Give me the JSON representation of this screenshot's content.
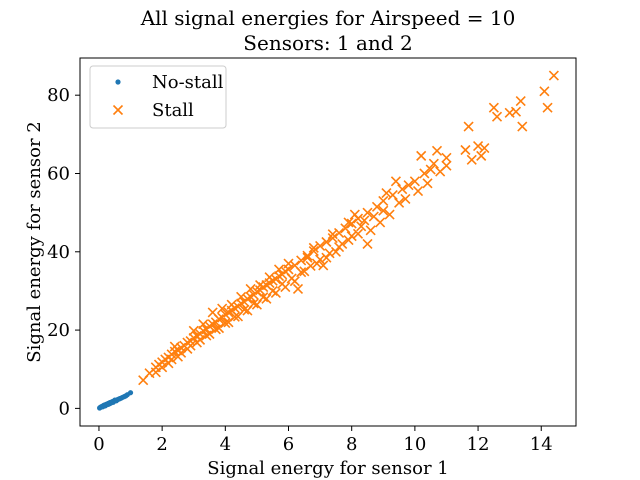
{
  "chart_data": {
    "type": "scatter",
    "title": "All signal energies for Airspeed = 10",
    "subtitle": "Sensors: 1 and 2",
    "xlabel": "Signal energy for sensor 1",
    "ylabel": "Signal energy for sensor 2",
    "xlim": [
      -0.6,
      15.1
    ],
    "ylim": [
      -4.5,
      89.5
    ],
    "xticks": [
      0,
      2,
      4,
      6,
      8,
      10,
      12,
      14
    ],
    "yticks": [
      0,
      20,
      40,
      60,
      80
    ],
    "grid": false,
    "legend_position": "top-left",
    "series": [
      {
        "name": "No-stall",
        "marker": "dot",
        "color": "#1f77b4",
        "points": [
          [
            0.02,
            0.1
          ],
          [
            0.04,
            0.25
          ],
          [
            0.06,
            0.3
          ],
          [
            0.08,
            0.45
          ],
          [
            0.1,
            0.5
          ],
          [
            0.12,
            0.55
          ],
          [
            0.14,
            0.7
          ],
          [
            0.16,
            0.8
          ],
          [
            0.18,
            0.85
          ],
          [
            0.2,
            0.9
          ],
          [
            0.22,
            1.0
          ],
          [
            0.25,
            1.1
          ],
          [
            0.28,
            1.2
          ],
          [
            0.3,
            1.3
          ],
          [
            0.33,
            1.4
          ],
          [
            0.36,
            1.5
          ],
          [
            0.4,
            1.6
          ],
          [
            0.43,
            1.75
          ],
          [
            0.46,
            1.8
          ],
          [
            0.5,
            1.9
          ],
          [
            0.54,
            2.0
          ],
          [
            0.58,
            2.2
          ],
          [
            0.62,
            2.35
          ],
          [
            0.66,
            2.5
          ],
          [
            0.7,
            2.6
          ],
          [
            0.74,
            2.8
          ],
          [
            0.8,
            3.0
          ],
          [
            0.85,
            3.2
          ],
          [
            0.9,
            3.5
          ],
          [
            1.0,
            4.0
          ],
          [
            0.12,
            0.4
          ],
          [
            0.2,
            0.65
          ],
          [
            0.26,
            0.95
          ],
          [
            0.35,
            1.25
          ],
          [
            0.45,
            1.55
          ],
          [
            0.55,
            1.95
          ],
          [
            0.65,
            2.45
          ],
          [
            0.3,
            1.05
          ],
          [
            0.4,
            1.45
          ],
          [
            0.5,
            2.1
          ]
        ]
      },
      {
        "name": "Stall",
        "marker": "x",
        "color": "#ff7f0e",
        "points": [
          [
            1.4,
            7.2
          ],
          [
            1.6,
            9.0
          ],
          [
            1.8,
            10.5
          ],
          [
            1.9,
            11.2
          ],
          [
            2.0,
            11.8
          ],
          [
            2.1,
            12.5
          ],
          [
            2.2,
            13.0
          ],
          [
            2.3,
            13.8
          ],
          [
            2.4,
            14.5
          ],
          [
            2.5,
            14.8
          ],
          [
            2.6,
            15.5
          ],
          [
            2.7,
            16.0
          ],
          [
            2.8,
            16.8
          ],
          [
            2.9,
            17.2
          ],
          [
            3.0,
            18.0
          ],
          [
            3.1,
            18.5
          ],
          [
            3.2,
            19.0
          ],
          [
            3.3,
            19.8
          ],
          [
            3.4,
            20.2
          ],
          [
            3.5,
            21.0
          ],
          [
            3.6,
            21.5
          ],
          [
            3.7,
            22.0
          ],
          [
            3.8,
            22.8
          ],
          [
            3.9,
            23.2
          ],
          [
            4.0,
            24.0
          ],
          [
            4.1,
            24.5
          ],
          [
            4.2,
            25.0
          ],
          [
            4.3,
            25.6
          ],
          [
            4.4,
            26.0
          ],
          [
            4.5,
            26.8
          ],
          [
            4.6,
            27.2
          ],
          [
            4.7,
            28.0
          ],
          [
            4.8,
            28.5
          ],
          [
            4.9,
            29.0
          ],
          [
            5.0,
            29.8
          ],
          [
            5.1,
            30.2
          ],
          [
            5.2,
            31.0
          ],
          [
            5.3,
            31.5
          ],
          [
            5.4,
            32.0
          ],
          [
            5.5,
            32.6
          ],
          [
            5.6,
            33.0
          ],
          [
            5.7,
            33.8
          ],
          [
            5.8,
            34.2
          ],
          [
            5.9,
            35.0
          ],
          [
            6.0,
            35.5
          ],
          [
            6.2,
            36.5
          ],
          [
            6.4,
            37.8
          ],
          [
            6.6,
            39.0
          ],
          [
            6.8,
            40.2
          ],
          [
            7.0,
            41.5
          ],
          [
            7.2,
            42.5
          ],
          [
            7.4,
            43.5
          ],
          [
            7.6,
            44.8
          ],
          [
            7.8,
            46.0
          ],
          [
            8.0,
            47.2
          ],
          [
            8.2,
            48.5
          ],
          [
            8.5,
            50.0
          ],
          [
            8.8,
            51.5
          ],
          [
            9.0,
            53.0
          ],
          [
            9.3,
            54.5
          ],
          [
            9.6,
            56.0
          ],
          [
            10.0,
            58.0
          ],
          [
            10.3,
            60.0
          ],
          [
            10.6,
            62.5
          ],
          [
            11.0,
            64.0
          ],
          [
            11.6,
            66.0
          ],
          [
            12.0,
            67.0
          ],
          [
            12.2,
            66.5
          ],
          [
            12.5,
            76.8
          ],
          [
            12.6,
            74.5
          ],
          [
            13.0,
            75.5
          ],
          [
            13.2,
            75.8
          ],
          [
            13.4,
            72.0
          ],
          [
            13.35,
            78.5
          ],
          [
            14.1,
            81.0
          ],
          [
            14.2,
            76.8
          ],
          [
            14.4,
            85.0
          ],
          [
            11.7,
            72.0
          ],
          [
            10.2,
            64.5
          ],
          [
            10.7,
            65.8
          ],
          [
            11.8,
            63.5
          ],
          [
            12.1,
            64.5
          ],
          [
            10.5,
            61.0
          ],
          [
            9.8,
            57.0
          ],
          [
            9.5,
            52.5
          ],
          [
            9.0,
            50.5
          ],
          [
            8.7,
            49.0
          ],
          [
            8.3,
            46.5
          ],
          [
            8.0,
            44.0
          ],
          [
            7.7,
            42.0
          ],
          [
            7.5,
            40.0
          ],
          [
            7.2,
            38.5
          ],
          [
            6.9,
            37.0
          ],
          [
            6.5,
            35.0
          ],
          [
            6.2,
            32.5
          ],
          [
            5.9,
            31.0
          ],
          [
            5.6,
            29.5
          ],
          [
            5.3,
            28.0
          ],
          [
            5.0,
            26.5
          ],
          [
            4.7,
            25.0
          ],
          [
            4.4,
            23.5
          ],
          [
            4.1,
            22.0
          ],
          [
            3.8,
            20.5
          ],
          [
            3.5,
            19.0
          ],
          [
            3.2,
            17.5
          ],
          [
            2.9,
            16.0
          ],
          [
            2.6,
            14.2
          ],
          [
            2.3,
            12.5
          ],
          [
            2.0,
            10.5
          ],
          [
            1.8,
            9.2
          ],
          [
            2.2,
            11.5
          ],
          [
            2.5,
            13.2
          ],
          [
            2.8,
            15.2
          ],
          [
            3.1,
            16.8
          ],
          [
            3.4,
            18.6
          ],
          [
            3.7,
            20.2
          ],
          [
            4.0,
            21.8
          ],
          [
            4.3,
            23.4
          ],
          [
            4.6,
            25.2
          ],
          [
            4.9,
            26.8
          ],
          [
            5.2,
            28.4
          ],
          [
            5.5,
            30.0
          ],
          [
            5.8,
            31.8
          ],
          [
            6.1,
            33.2
          ],
          [
            6.4,
            34.8
          ],
          [
            6.7,
            36.4
          ],
          [
            7.0,
            38.0
          ],
          [
            7.3,
            39.6
          ],
          [
            7.6,
            41.2
          ],
          [
            7.9,
            43.0
          ],
          [
            8.2,
            44.6
          ],
          [
            8.4,
            48.0
          ],
          [
            8.6,
            45.5
          ],
          [
            8.9,
            47.5
          ],
          [
            9.2,
            49.5
          ],
          [
            9.7,
            53.5
          ],
          [
            10.1,
            55.5
          ],
          [
            10.4,
            57.5
          ],
          [
            10.8,
            60.5
          ],
          [
            11.0,
            62.0
          ],
          [
            6.3,
            30.5
          ],
          [
            7.1,
            36.5
          ],
          [
            8.5,
            42.0
          ],
          [
            3.6,
            24.5
          ],
          [
            4.5,
            28.5
          ],
          [
            5.4,
            33.5
          ],
          [
            6.6,
            38.5
          ],
          [
            7.4,
            44.5
          ],
          [
            8.1,
            49.5
          ],
          [
            9.1,
            55.0
          ],
          [
            9.4,
            58.0
          ],
          [
            2.4,
            15.8
          ],
          [
            3.0,
            19.8
          ],
          [
            3.9,
            25.5
          ],
          [
            4.8,
            30.5
          ],
          [
            5.7,
            35.5
          ],
          [
            6.0,
            37.0
          ],
          [
            7.9,
            47.5
          ],
          [
            3.3,
            21.5
          ],
          [
            4.2,
            26.5
          ],
          [
            5.1,
            31.5
          ],
          [
            6.8,
            41.0
          ]
        ]
      }
    ]
  }
}
